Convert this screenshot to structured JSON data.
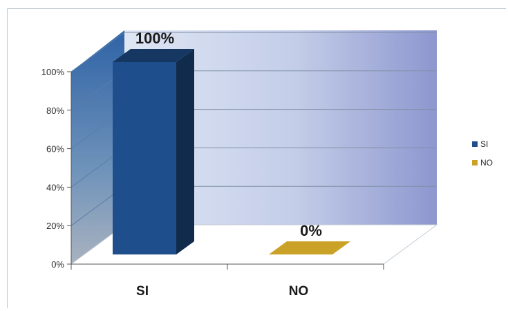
{
  "chart_data": {
    "type": "bar",
    "style": "3d-column",
    "categories": [
      "SI",
      "NO"
    ],
    "series": [
      {
        "name": "SI",
        "values": [
          100,
          null
        ],
        "color": "#1f4e8c"
      },
      {
        "name": "NO",
        "values": [
          null,
          0
        ],
        "color": "#c9a227"
      }
    ],
    "data_labels": [
      "100%",
      "0%"
    ],
    "y_ticks": [
      "0%",
      "20%",
      "40%",
      "60%",
      "80%",
      "100%"
    ],
    "ylim": [
      0,
      100
    ],
    "grid": true,
    "legend": {
      "position": "right",
      "entries": [
        "SI",
        "NO"
      ]
    }
  }
}
